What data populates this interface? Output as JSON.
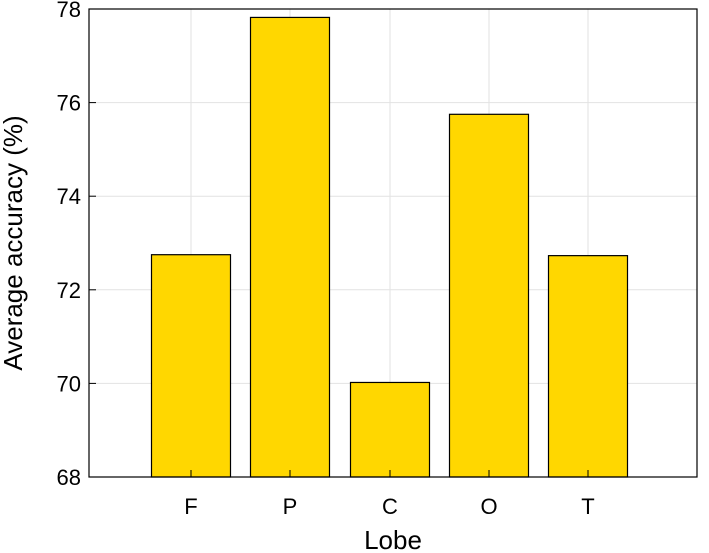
{
  "chart_data": {
    "type": "bar",
    "categories": [
      "F",
      "P",
      "C",
      "O",
      "T"
    ],
    "values": [
      72.75,
      77.82,
      70.02,
      75.75,
      72.73
    ],
    "title": "",
    "xlabel": "Lobe",
    "ylabel": "Average accuracy (%)",
    "ylim": [
      68,
      78
    ],
    "yticks": [
      68,
      70,
      72,
      74,
      76,
      78
    ],
    "grid": true,
    "legend": "none",
    "bar_color": "#FFD700",
    "bar_edge_color": "#000000"
  }
}
